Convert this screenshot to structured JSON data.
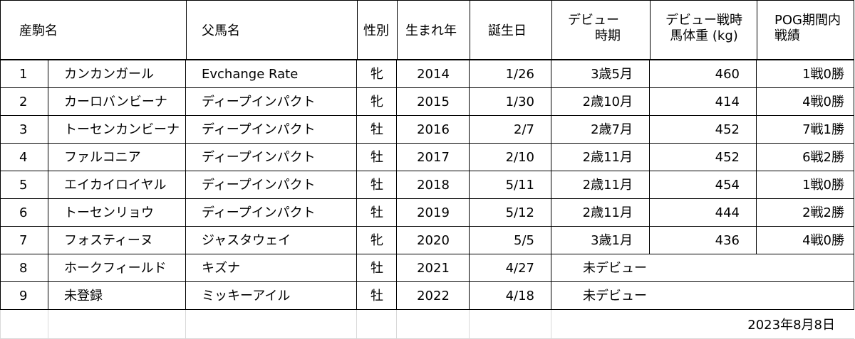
{
  "headers": {
    "name": "産駒名",
    "sire": "父馬名",
    "sex": "性別",
    "year": "生まれ年",
    "birthday": "誕生日",
    "debut_line1": "デビュー",
    "debut_line2": "時期",
    "weight_line1": "デビュー戦時",
    "weight_line2": "馬体重 (kg)",
    "record_line1": "POG期間内",
    "record_line2": "戦績"
  },
  "rows": [
    {
      "idx": "1",
      "name": "カンカンガール",
      "sire": "Evchange Rate",
      "sex": "牝",
      "year": "2014",
      "birthday": "1/26",
      "debut": "3歳5月",
      "weight": "460",
      "record": "1戦0勝"
    },
    {
      "idx": "2",
      "name": "カーロバンビーナ",
      "sire": "ディープインパクト",
      "sex": "牝",
      "year": "2015",
      "birthday": "1/30",
      "debut": "2歳10月",
      "weight": "414",
      "record": "4戦0勝"
    },
    {
      "idx": "3",
      "name": "トーセンカンビーナ",
      "sire": "ディープインパクト",
      "sex": "牡",
      "year": "2016",
      "birthday": "2/7",
      "debut": "2歳7月",
      "weight": "452",
      "record": "7戦1勝"
    },
    {
      "idx": "4",
      "name": "ファルコニア",
      "sire": "ディープインパクト",
      "sex": "牡",
      "year": "2017",
      "birthday": "2/10",
      "debut": "2歳11月",
      "weight": "452",
      "record": "6戦2勝"
    },
    {
      "idx": "5",
      "name": "エイカイロイヤル",
      "sire": "ディープインパクト",
      "sex": "牡",
      "year": "2018",
      "birthday": "5/11",
      "debut": "2歳11月",
      "weight": "454",
      "record": "1戦0勝"
    },
    {
      "idx": "6",
      "name": "トーセンリョウ",
      "sire": "ディープインパクト",
      "sex": "牡",
      "year": "2019",
      "birthday": "5/12",
      "debut": "2歳11月",
      "weight": "444",
      "record": "2戦2勝"
    },
    {
      "idx": "7",
      "name": "フォスティーヌ",
      "sire": "ジャスタウェイ",
      "sex": "牝",
      "year": "2020",
      "birthday": "5/5",
      "debut": "3歳1月",
      "weight": "436",
      "record": "4戦0勝"
    },
    {
      "idx": "8",
      "name": "ホークフィールド",
      "sire": "キズナ",
      "sex": "牡",
      "year": "2021",
      "birthday": "4/27",
      "undebuted": "未デビュー"
    },
    {
      "idx": "9",
      "name": "未登録",
      "sire": "ミッキーアイル",
      "sex": "牡",
      "year": "2022",
      "birthday": "4/18",
      "undebuted": "未デビュー"
    }
  ],
  "footer_date": "2023年8月8日"
}
